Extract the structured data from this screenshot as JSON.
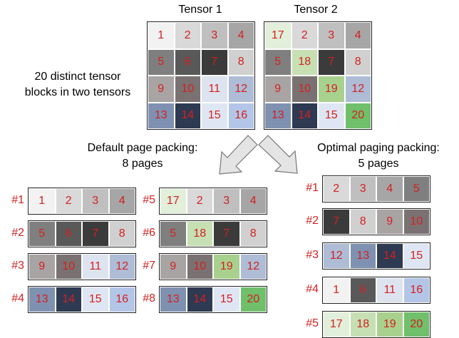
{
  "colors": {
    "1": "#f2f2f2",
    "2": "#d9d9d9",
    "3": "#bfbfbf",
    "4": "#a6a6a6",
    "5": "#7f7f7f",
    "6": "#595959",
    "7": "#3b3b3b",
    "8": "#d0d0d0",
    "9": "#a9a4a4",
    "10": "#7a7272",
    "11": "#dde4f0",
    "12": "#aebcd6",
    "13": "#7f91b0",
    "14": "#2e3a52",
    "15": "#dfe6f3",
    "16": "#b4c6e7",
    "17": "#e2efda",
    "18": "#c6e0b4",
    "19": "#a9d18e",
    "20": "#70bf6a",
    "number_text": "#d42020"
  },
  "labels": {
    "tensor1": "Tensor 1",
    "tensor2": "Tensor 2",
    "distinct_line1": "20 distinct tensor",
    "distinct_line2": "blocks in two tensors",
    "default_line1": "Default page packing:",
    "default_line2": "8 pages",
    "optimal_line1": "Optimal paging packing:",
    "optimal_line2": "5 pages"
  },
  "tensor1": [
    [
      1,
      2,
      3,
      4
    ],
    [
      5,
      6,
      7,
      8
    ],
    [
      9,
      10,
      11,
      12
    ],
    [
      13,
      14,
      15,
      16
    ]
  ],
  "tensor2": [
    [
      17,
      2,
      3,
      4
    ],
    [
      5,
      18,
      7,
      8
    ],
    [
      9,
      10,
      19,
      12
    ],
    [
      13,
      14,
      15,
      20
    ]
  ],
  "default_pages": [
    {
      "label": "#1",
      "blocks": [
        1,
        2,
        3,
        4
      ]
    },
    {
      "label": "#2",
      "blocks": [
        5,
        6,
        7,
        8
      ]
    },
    {
      "label": "#3",
      "blocks": [
        9,
        10,
        11,
        12
      ]
    },
    {
      "label": "#4",
      "blocks": [
        13,
        14,
        15,
        16
      ]
    },
    {
      "label": "#5",
      "blocks": [
        17,
        2,
        3,
        4
      ]
    },
    {
      "label": "#6",
      "blocks": [
        5,
        18,
        7,
        8
      ]
    },
    {
      "label": "#7",
      "blocks": [
        9,
        10,
        19,
        12
      ]
    },
    {
      "label": "#8",
      "blocks": [
        13,
        14,
        15,
        20
      ]
    }
  ],
  "optimal_pages": [
    {
      "label": "#1",
      "blocks": [
        2,
        3,
        4,
        5
      ]
    },
    {
      "label": "#2",
      "blocks": [
        7,
        8,
        9,
        10
      ]
    },
    {
      "label": "#3",
      "blocks": [
        12,
        13,
        14,
        15
      ]
    },
    {
      "label": "#4",
      "blocks": [
        1,
        6,
        11,
        16
      ]
    },
    {
      "label": "#5",
      "blocks": [
        17,
        18,
        19,
        20
      ]
    }
  ]
}
